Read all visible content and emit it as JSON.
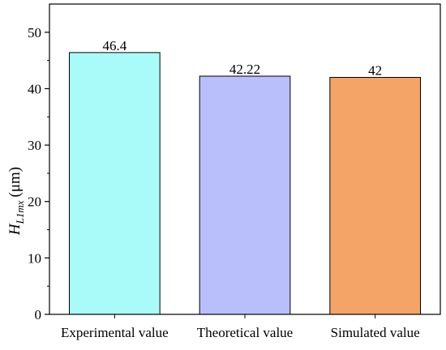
{
  "chart_data": {
    "type": "bar",
    "categories": [
      "Experimental value",
      "Theoretical value",
      "Simulated value"
    ],
    "values": [
      46.4,
      42.22,
      42
    ],
    "data_labels": [
      "46.4",
      "42.22",
      "42"
    ],
    "colors": [
      "#a9fbf9",
      "#b9bffb",
      "#f3a466"
    ],
    "ylabel": {
      "symbol": "H",
      "subscript": "L1mx",
      "unit": "(μm)"
    },
    "ylim": [
      0,
      55
    ],
    "yticks": [
      0,
      10,
      20,
      30,
      40,
      50
    ],
    "grid": false,
    "legend": "none"
  }
}
